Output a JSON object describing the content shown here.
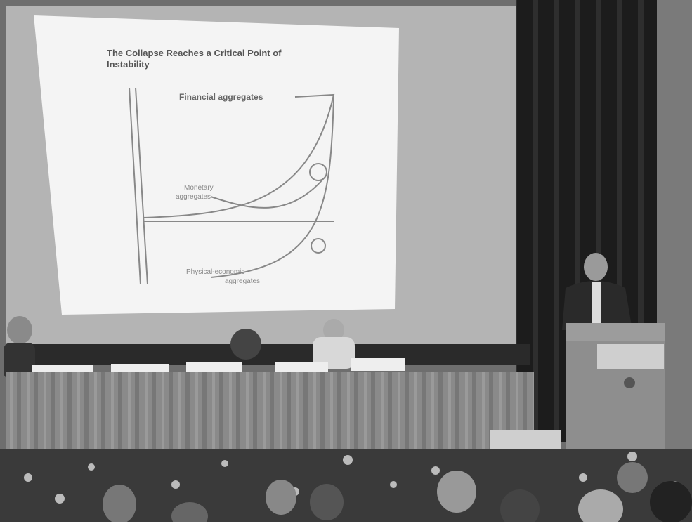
{
  "slide": {
    "title_line1": "The Collapse Reaches a Critical Point of",
    "title_line2": "Instability",
    "financial_label": "Financial aggregates",
    "monetary_label_line1": "Monetary",
    "monetary_label_line2": "aggregates",
    "physical_label_line1": "Physical-economic",
    "physical_label_line2": "aggregates"
  }
}
